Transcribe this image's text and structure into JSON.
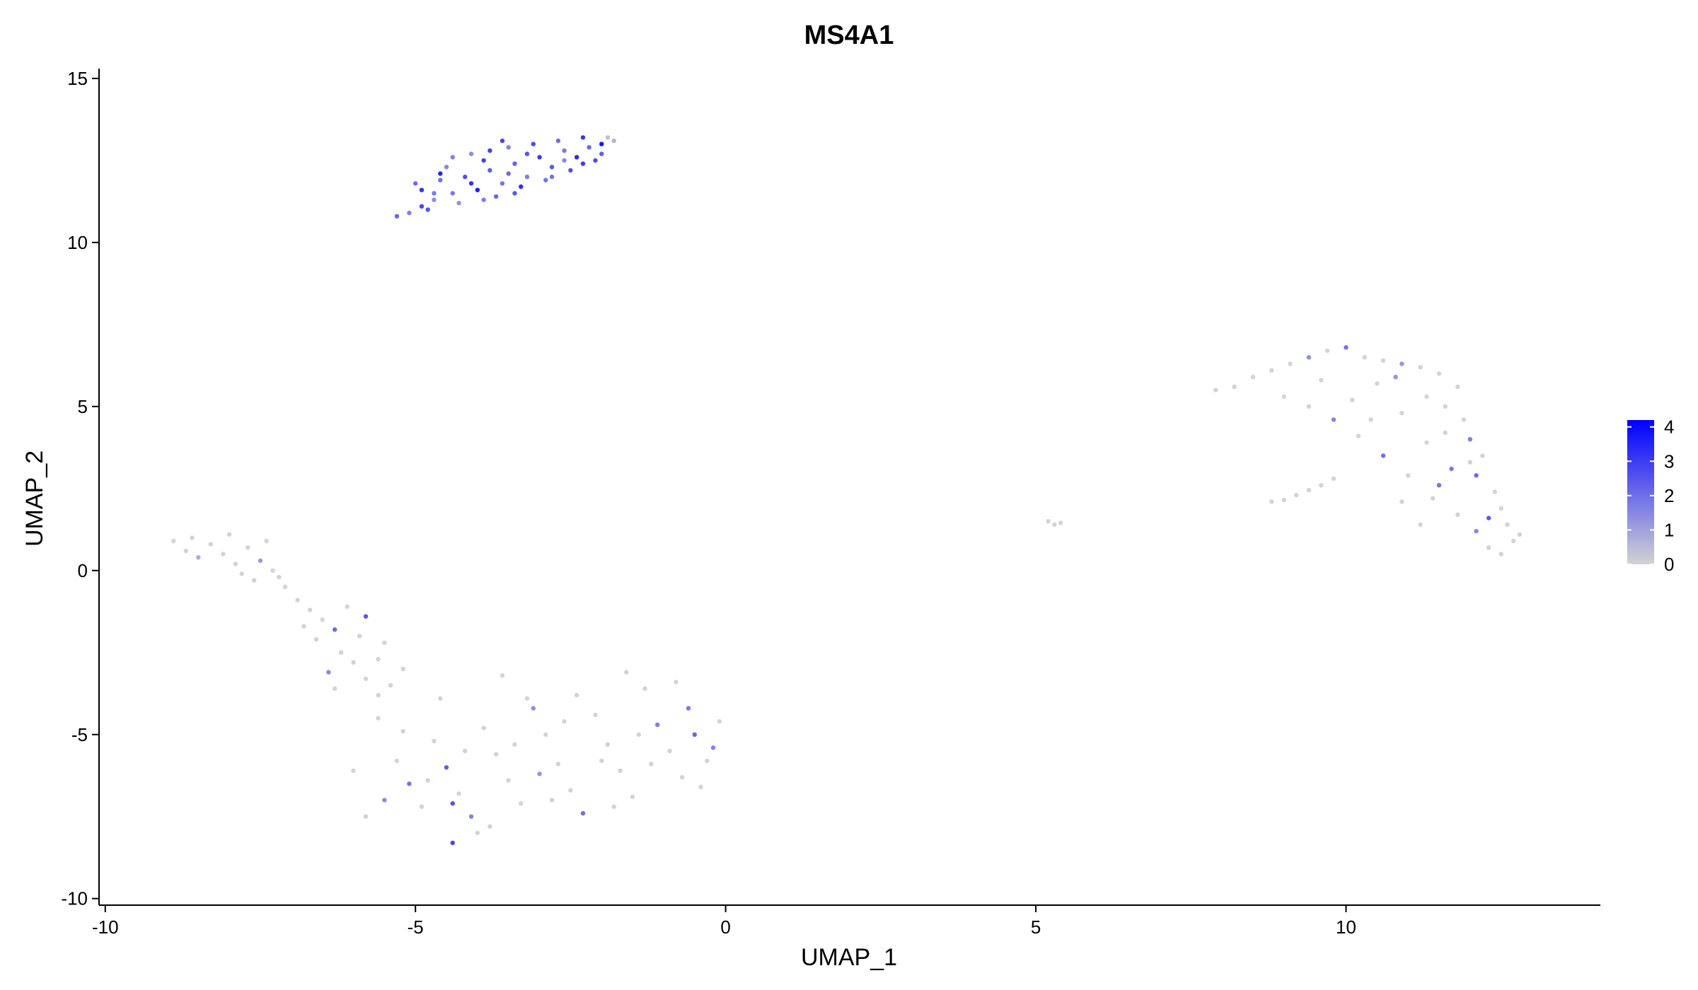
{
  "chart_data": {
    "type": "scatter",
    "title": "MS4A1",
    "xlabel": "UMAP_1",
    "ylabel": "UMAP_2",
    "xlim": [
      -10.1,
      14.1
    ],
    "ylim": [
      -10.2,
      15.3
    ],
    "xticks": [
      -10,
      -5,
      0,
      5,
      10
    ],
    "xtick_labels": [
      "-10",
      "-5",
      "0",
      "5",
      "10"
    ],
    "yticks": [
      -10,
      -5,
      0,
      5,
      10,
      15
    ],
    "ytick_labels": [
      "-10",
      "-5",
      "0",
      "5",
      "10",
      "15"
    ],
    "grid": false,
    "legend_position": "right",
    "colorscale": {
      "low_color": "#d3d3d3",
      "high_color": "#0000ff",
      "min": 0,
      "max": 4.2,
      "ticks": [
        0,
        1,
        2,
        3,
        4
      ],
      "tick_labels": [
        "0",
        "1",
        "2",
        "3",
        "4"
      ]
    },
    "clusters": [
      {
        "points": [
          [
            -5.3,
            10.8
          ],
          [
            -5.1,
            10.9
          ],
          [
            -4.9,
            11.1
          ],
          [
            -4.7,
            11.3
          ],
          [
            -4.9,
            11.6
          ],
          [
            -4.6,
            11.9
          ],
          [
            -4.4,
            11.5
          ],
          [
            -4.2,
            12.0
          ],
          [
            -4.5,
            12.3
          ],
          [
            -4.0,
            11.6
          ],
          [
            -3.8,
            12.2
          ],
          [
            -3.6,
            11.8
          ],
          [
            -3.9,
            12.5
          ],
          [
            -3.4,
            12.4
          ],
          [
            -3.2,
            12.0
          ],
          [
            -3.0,
            12.6
          ],
          [
            -2.8,
            12.3
          ],
          [
            -2.6,
            12.8
          ],
          [
            -2.4,
            12.6
          ],
          [
            -2.2,
            12.9
          ],
          [
            -2.0,
            13.0
          ],
          [
            -3.5,
            12.9
          ],
          [
            -3.1,
            13.0
          ],
          [
            -2.7,
            13.1
          ],
          [
            -2.3,
            13.2
          ],
          [
            -1.9,
            13.2
          ],
          [
            -4.8,
            11.0
          ],
          [
            -4.3,
            11.2
          ],
          [
            -3.7,
            11.4
          ],
          [
            -3.3,
            11.7
          ],
          [
            -2.9,
            11.9
          ],
          [
            -2.5,
            12.2
          ],
          [
            -4.1,
            12.7
          ],
          [
            -3.6,
            13.1
          ],
          [
            -5.0,
            11.8
          ],
          [
            -4.6,
            12.1
          ],
          [
            -3.9,
            11.3
          ],
          [
            -3.4,
            11.5
          ],
          [
            -2.8,
            12.0
          ],
          [
            -2.3,
            12.4
          ],
          [
            -2.0,
            12.7
          ],
          [
            -4.4,
            12.6
          ],
          [
            -3.8,
            12.8
          ],
          [
            -3.2,
            12.7
          ],
          [
            -4.7,
            11.5
          ],
          [
            -4.1,
            11.8
          ],
          [
            -3.5,
            12.1
          ],
          [
            -2.6,
            12.5
          ],
          [
            -2.1,
            12.5
          ],
          [
            -1.8,
            13.1
          ]
        ],
        "values": [
          2.1,
          1.6,
          2.8,
          1.4,
          3.2,
          2.0,
          1.8,
          2.6,
          1.5,
          3.6,
          2.3,
          1.9,
          2.9,
          2.2,
          1.7,
          3.0,
          2.4,
          1.8,
          3.4,
          2.1,
          3.8,
          1.6,
          2.7,
          2.0,
          3.1,
          0.4,
          2.5,
          1.3,
          2.2,
          3.3,
          1.9,
          2.6,
          1.4,
          2.8,
          2.0,
          3.5,
          1.7,
          2.4,
          1.9,
          3.0,
          2.3,
          1.6,
          2.9,
          2.5,
          1.8,
          3.2,
          2.1,
          1.5,
          2.7,
          0.6
        ]
      },
      {
        "points": [
          [
            -8.9,
            0.9
          ],
          [
            -8.7,
            0.6
          ],
          [
            -8.5,
            0.4
          ],
          [
            -8.3,
            0.8
          ],
          [
            -8.1,
            0.5
          ],
          [
            -7.9,
            0.2
          ],
          [
            -7.7,
            0.7
          ],
          [
            -7.5,
            0.3
          ],
          [
            -7.3,
            0.0
          ],
          [
            -7.6,
            -0.3
          ],
          [
            -7.1,
            -0.5
          ],
          [
            -6.9,
            -0.9
          ],
          [
            -6.7,
            -1.2
          ],
          [
            -6.5,
            -1.5
          ],
          [
            -6.3,
            -1.8
          ],
          [
            -6.6,
            -2.1
          ],
          [
            -6.2,
            -2.5
          ],
          [
            -6.0,
            -2.8
          ],
          [
            -6.4,
            -3.1
          ],
          [
            -5.8,
            -3.3
          ],
          [
            -5.6,
            -2.7
          ],
          [
            -5.4,
            -3.5
          ],
          [
            -5.8,
            -1.4
          ],
          [
            -6.1,
            -1.1
          ],
          [
            -5.2,
            -3.0
          ],
          [
            -8.6,
            1.0
          ],
          [
            -8.0,
            1.1
          ],
          [
            -7.4,
            0.9
          ],
          [
            -7.8,
            -0.1
          ],
          [
            -6.8,
            -1.7
          ],
          [
            -5.5,
            -2.2
          ],
          [
            -5.9,
            -2.0
          ],
          [
            -6.3,
            -3.6
          ],
          [
            -5.6,
            -3.8
          ],
          [
            -7.2,
            -0.2
          ]
        ],
        "values": [
          0,
          0,
          0.8,
          0,
          0,
          0,
          0,
          1.2,
          0,
          0,
          0,
          0,
          0,
          0,
          2.1,
          0,
          0,
          0,
          1.5,
          0,
          0,
          0,
          2.4,
          0,
          0,
          0,
          0,
          0,
          0,
          0,
          0,
          0,
          0,
          0,
          0
        ]
      },
      {
        "points": [
          [
            -5.6,
            -4.5
          ],
          [
            -5.3,
            -5.8
          ],
          [
            -5.1,
            -6.5
          ],
          [
            -4.9,
            -7.2
          ],
          [
            -4.7,
            -5.2
          ],
          [
            -4.5,
            -6.0
          ],
          [
            -4.3,
            -6.8
          ],
          [
            -4.1,
            -7.5
          ],
          [
            -3.9,
            -4.8
          ],
          [
            -3.7,
            -5.6
          ],
          [
            -3.5,
            -6.4
          ],
          [
            -3.3,
            -7.1
          ],
          [
            -3.1,
            -4.2
          ],
          [
            -2.9,
            -5.0
          ],
          [
            -2.7,
            -5.9
          ],
          [
            -2.5,
            -6.7
          ],
          [
            -2.3,
            -7.4
          ],
          [
            -2.1,
            -4.4
          ],
          [
            -1.9,
            -5.3
          ],
          [
            -1.7,
            -6.1
          ],
          [
            -1.5,
            -6.9
          ],
          [
            -1.3,
            -3.6
          ],
          [
            -1.1,
            -4.7
          ],
          [
            -0.9,
            -5.5
          ],
          [
            -0.7,
            -6.3
          ],
          [
            -0.5,
            -5.0
          ],
          [
            -0.3,
            -5.8
          ],
          [
            -0.1,
            -4.6
          ],
          [
            -4.4,
            -8.3
          ],
          [
            -4.0,
            -8.0
          ],
          [
            -5.8,
            -7.5
          ],
          [
            -6.0,
            -6.1
          ],
          [
            -5.5,
            -7.0
          ],
          [
            -1.6,
            -3.1
          ],
          [
            -0.8,
            -3.4
          ],
          [
            -2.4,
            -3.8
          ],
          [
            -3.6,
            -3.2
          ],
          [
            -4.6,
            -3.9
          ],
          [
            -2.0,
            -5.8
          ],
          [
            -3.0,
            -6.2
          ],
          [
            -4.8,
            -6.4
          ],
          [
            -1.2,
            -5.9
          ],
          [
            -0.4,
            -6.6
          ],
          [
            -3.4,
            -5.3
          ],
          [
            -2.6,
            -4.6
          ],
          [
            -1.8,
            -7.2
          ],
          [
            -3.8,
            -7.8
          ],
          [
            -5.2,
            -4.9
          ],
          [
            -0.6,
            -4.2
          ],
          [
            -1.4,
            -5.0
          ],
          [
            -2.8,
            -7.0
          ],
          [
            -4.2,
            -5.5
          ],
          [
            -3.2,
            -3.9
          ],
          [
            -0.2,
            -5.4
          ],
          [
            -4.4,
            -7.1
          ]
        ],
        "values": [
          0,
          0,
          1.9,
          0,
          0,
          2.3,
          0,
          1.6,
          0,
          0,
          0,
          0,
          1.4,
          0,
          0,
          0,
          2.0,
          0,
          0,
          0,
          0,
          0,
          1.7,
          0,
          0,
          2.2,
          0,
          0,
          2.8,
          0,
          0,
          0,
          1.5,
          0,
          0,
          0,
          0,
          0,
          0,
          1.3,
          0,
          0,
          0,
          0,
          0,
          0,
          0,
          0,
          1.8,
          0,
          0,
          0,
          0,
          1.6,
          2.5
        ]
      },
      {
        "points": [
          [
            5.2,
            1.5
          ],
          [
            5.3,
            1.4
          ],
          [
            5.4,
            1.45
          ]
        ],
        "values": [
          0,
          0,
          0
        ]
      },
      {
        "points": [
          [
            8.8,
            2.1
          ],
          [
            9.0,
            2.15
          ],
          [
            9.2,
            2.3
          ],
          [
            9.4,
            2.45
          ],
          [
            9.6,
            2.6
          ],
          [
            9.8,
            2.8
          ]
        ],
        "values": [
          0,
          0,
          0,
          0,
          0,
          0
        ]
      },
      {
        "points": [
          [
            7.9,
            5.5
          ],
          [
            8.2,
            5.6
          ],
          [
            8.5,
            5.9
          ],
          [
            8.8,
            6.1
          ],
          [
            9.1,
            6.3
          ],
          [
            9.4,
            6.5
          ],
          [
            9.7,
            6.7
          ],
          [
            10.0,
            6.8
          ],
          [
            10.3,
            6.5
          ],
          [
            10.6,
            6.4
          ],
          [
            10.9,
            6.3
          ],
          [
            11.2,
            6.2
          ],
          [
            11.5,
            6.0
          ],
          [
            11.8,
            5.6
          ],
          [
            11.6,
            5.0
          ],
          [
            11.9,
            4.6
          ],
          [
            12.0,
            4.0
          ],
          [
            12.2,
            3.5
          ],
          [
            12.1,
            2.9
          ],
          [
            12.4,
            2.4
          ],
          [
            12.5,
            1.9
          ],
          [
            12.6,
            1.4
          ],
          [
            12.7,
            0.9
          ],
          [
            12.5,
            0.5
          ],
          [
            12.3,
            0.7
          ],
          [
            12.1,
            1.2
          ],
          [
            11.8,
            1.7
          ],
          [
            11.4,
            2.2
          ],
          [
            11.0,
            2.9
          ],
          [
            10.6,
            3.5
          ],
          [
            10.2,
            4.1
          ],
          [
            9.8,
            4.6
          ],
          [
            9.4,
            5.0
          ],
          [
            9.0,
            5.3
          ],
          [
            10.5,
            5.7
          ],
          [
            10.9,
            4.8
          ],
          [
            11.3,
            3.9
          ],
          [
            11.7,
            3.1
          ],
          [
            10.1,
            5.2
          ],
          [
            9.6,
            5.8
          ],
          [
            10.8,
            5.9
          ],
          [
            11.3,
            5.3
          ],
          [
            11.6,
            4.2
          ],
          [
            12.3,
            1.6
          ],
          [
            12.8,
            1.1
          ],
          [
            11.2,
            1.4
          ],
          [
            10.9,
            2.1
          ],
          [
            12.0,
            3.3
          ],
          [
            11.5,
            2.6
          ],
          [
            10.4,
            4.6
          ]
        ],
        "values": [
          0,
          0,
          0,
          0,
          0,
          1.4,
          0,
          1.9,
          0,
          0,
          1.2,
          0,
          0,
          0,
          0,
          0,
          1.7,
          0,
          2.1,
          0,
          0,
          0,
          0,
          0,
          0,
          1.5,
          0,
          0,
          0,
          2.0,
          0,
          1.6,
          0,
          0,
          0,
          0,
          0,
          1.8,
          0,
          0,
          1.3,
          0,
          0,
          2.4,
          0,
          0,
          0,
          0,
          1.9,
          0
        ]
      }
    ]
  }
}
